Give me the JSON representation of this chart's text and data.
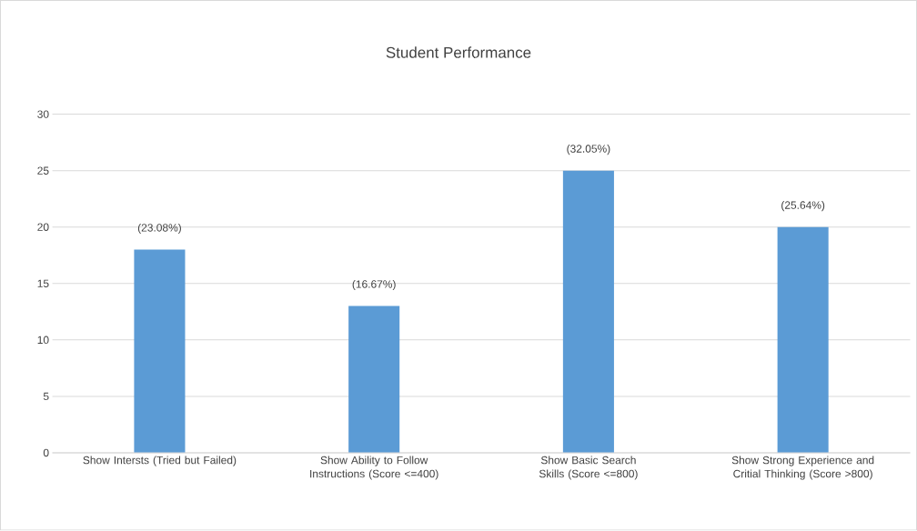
{
  "chart_data": {
    "type": "bar",
    "title": "Student Performance",
    "categories": [
      "Show Intersts (Tried but Failed)",
      "Show Ability to Follow Instructions (Score <=400)",
      "Show Basic Search Skills (Score <=800)",
      "Show Strong Experience and Critial Thinking (Score >800)"
    ],
    "values": [
      18,
      13,
      25,
      20
    ],
    "color": "#5b9bd5",
    "annotations": [
      {
        "text": "(23.08%)",
        "x": "Show Intersts (Tried but Failed)",
        "y": 18
      },
      {
        "text": "(16.67%)",
        "x": "Show Ability to Follow Instructions (Score <=400)",
        "y": 13
      },
      {
        "text": "(32.05%)",
        "x": "Show Basic Search Skills (Score <=800)",
        "y": 25
      },
      {
        "text": "(25.64%)",
        "x": "Show Strong Experience and Critial Thinking (Score >800)",
        "y": 20
      }
    ],
    "ylim": [
      0,
      30
    ],
    "yticks": [
      0,
      5,
      10,
      15,
      20,
      25,
      30
    ],
    "grid": "y"
  }
}
